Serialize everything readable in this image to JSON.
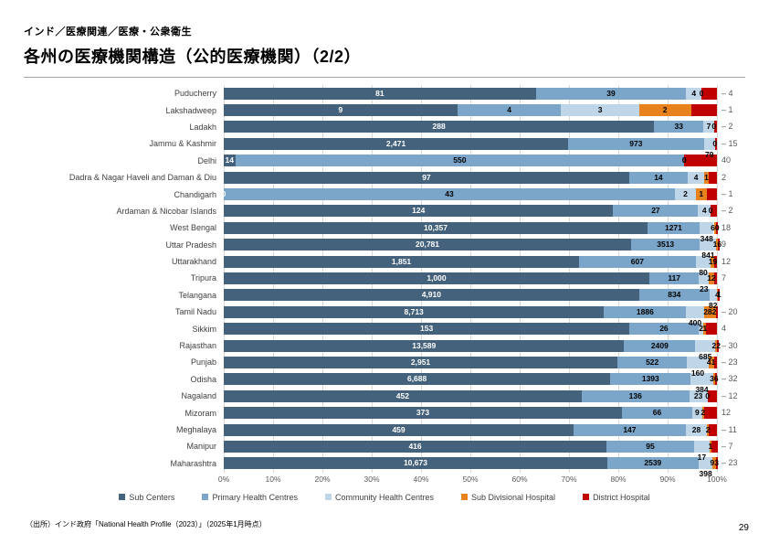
{
  "slide": {
    "eyebrow": "インド／医療関連／医療・公衆衛生",
    "title": "各州の医療機関構造（公的医療機関）（2/2）",
    "source": "（出所）インド政府「National Health Profile（2023）」（2025年1月時点）",
    "page_number": "29"
  },
  "chart_data": {
    "type": "bar",
    "orientation": "horizontal",
    "stacked": "100%",
    "x_ticks": [
      "0%",
      "10%",
      "20%",
      "30%",
      "40%",
      "50%",
      "60%",
      "70%",
      "80%",
      "90%",
      "100%"
    ],
    "legend_position": "bottom",
    "grid": "vertical",
    "series_names": [
      "Sub Centers",
      "Primary Health Centres",
      "Community Health Centres",
      "Sub Divisional Hospital",
      "District Hospital"
    ],
    "series_colors": [
      "#44627C",
      "#7BA6C9",
      "#BFD6E8",
      "#E8821D",
      "#C00000"
    ],
    "rows": [
      {
        "state": "Puducherry",
        "values": [
          81,
          39,
          4,
          0,
          4
        ],
        "labels": [
          "81",
          "39",
          "4",
          "0",
          ""
        ],
        "right": "– 4"
      },
      {
        "state": "Lakshadweep",
        "values": [
          9,
          4,
          3,
          2,
          1
        ],
        "labels": [
          "9",
          "4",
          "3",
          "2",
          ""
        ],
        "right": "– 1"
      },
      {
        "state": "Ladakh",
        "values": [
          288,
          33,
          7,
          0,
          2
        ],
        "labels": [
          "288",
          "33",
          "7",
          "0",
          ""
        ],
        "right": "– 2"
      },
      {
        "state": "Jammu & Kashmir",
        "values": [
          2471,
          973,
          79,
          0,
          15
        ],
        "labels": [
          "2,471",
          "973",
          "79",
          "0",
          ""
        ],
        "right": "– 15"
      },
      {
        "state": "Delhi",
        "values": [
          14,
          550,
          0,
          0,
          40
        ],
        "labels": [
          "14",
          "550",
          "0",
          "0",
          ""
        ],
        "right": "40"
      },
      {
        "state": "Dadra & Nagar Haveli and Daman & Diu",
        "values": [
          97,
          14,
          4,
          1,
          2
        ],
        "labels": [
          "97",
          "14",
          "4",
          "1",
          ""
        ],
        "right": "2"
      },
      {
        "state": "Chandigarh",
        "values": [
          0,
          43,
          2,
          1,
          1
        ],
        "labels": [
          "0",
          "43",
          "2",
          "1",
          ""
        ],
        "right": "– 1"
      },
      {
        "state": "Ardaman & Nicobar Islands",
        "values": [
          124,
          27,
          4,
          0,
          2
        ],
        "labels": [
          "124",
          "27",
          "4",
          "0",
          ""
        ],
        "right": "– 2"
      },
      {
        "state": "West Bengal",
        "values": [
          10357,
          1271,
          348,
          60,
          18
        ],
        "labels": [
          "10,357",
          "1271",
          "348",
          "60",
          ""
        ],
        "right": "18"
      },
      {
        "state": "Uttar Pradesh",
        "values": [
          20781,
          3513,
          841,
          16,
          9
        ],
        "labels": [
          "20,781",
          "3513",
          "841",
          "16",
          ""
        ],
        "right": "9"
      },
      {
        "state": "Uttarakhand",
        "values": [
          1851,
          607,
          80,
          19,
          12
        ],
        "labels": [
          "1,851",
          "607",
          "80",
          "19",
          ""
        ],
        "right": "12"
      },
      {
        "state": "Tripura",
        "values": [
          1000,
          117,
          23,
          12,
          7
        ],
        "labels": [
          "1,000",
          "117",
          "23",
          "12",
          ""
        ],
        "right": "7"
      },
      {
        "state": "Telangana",
        "values": [
          4910,
          834,
          82,
          4,
          1
        ],
        "labels": [
          "4,910",
          "834",
          "82",
          "4",
          "1"
        ],
        "right": ""
      },
      {
        "state": "Tamil Nadu",
        "values": [
          8713,
          1886,
          400,
          282,
          20
        ],
        "labels": [
          "8,713",
          "1886",
          "400",
          "282",
          ""
        ],
        "right": "– 20"
      },
      {
        "state": "Sikkim",
        "values": [
          153,
          26,
          2,
          1,
          4
        ],
        "labels": [
          "153",
          "26",
          "2",
          "1",
          ""
        ],
        "right": "4"
      },
      {
        "state": "Rajasthan",
        "values": [
          13589,
          2409,
          685,
          22,
          30
        ],
        "labels": [
          "13,589",
          "2409",
          "685",
          "22",
          ""
        ],
        "right": "– 30"
      },
      {
        "state": "Punjab",
        "values": [
          2951,
          522,
          160,
          41,
          23
        ],
        "labels": [
          "2,951",
          "522",
          "160",
          "41",
          ""
        ],
        "right": "– 23"
      },
      {
        "state": "Odisha",
        "values": [
          6688,
          1393,
          384,
          36,
          32
        ],
        "labels": [
          "6,688",
          "1393",
          "384",
          "36",
          ""
        ],
        "right": "– 32"
      },
      {
        "state": "Nagaland",
        "values": [
          452,
          136,
          23,
          0,
          12
        ],
        "labels": [
          "452",
          "136",
          "23",
          "0",
          ""
        ],
        "right": "– 12"
      },
      {
        "state": "Mizoram",
        "values": [
          373,
          66,
          9,
          2,
          12
        ],
        "labels": [
          "373",
          "66",
          "9",
          "2",
          ""
        ],
        "right": "12"
      },
      {
        "state": "Meghalaya",
        "values": [
          459,
          147,
          28,
          2,
          11
        ],
        "labels": [
          "459",
          "147",
          "28",
          "2",
          ""
        ],
        "right": "– 11"
      },
      {
        "state": "Manipur",
        "values": [
          416,
          95,
          17,
          1,
          7
        ],
        "labels": [
          "416",
          "95",
          "17",
          "1",
          ""
        ],
        "right": "– 7"
      },
      {
        "state": "Maharashtra",
        "values": [
          10673,
          2539,
          398,
          93,
          23
        ],
        "labels": [
          "10,673",
          "2539",
          "398",
          "93",
          ""
        ],
        "right": "– 23"
      }
    ]
  }
}
